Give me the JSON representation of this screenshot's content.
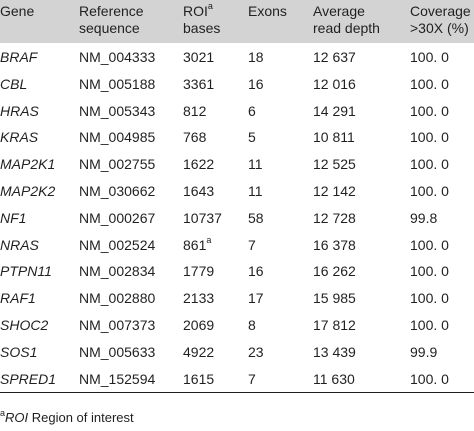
{
  "table": {
    "headers": {
      "gene": "Gene",
      "reference_line1": "Reference",
      "reference_line2": "sequence",
      "roi_line1_prefix": "ROI",
      "roi_line1_sup": "a",
      "roi_line2": "bases",
      "exons": "Exons",
      "depth_line1": "Average",
      "depth_line2": "read depth",
      "coverage_line1": "Coverage",
      "coverage_line2": ">30X (%)"
    },
    "rows": [
      {
        "gene": "BRAF",
        "ref": "NM_004333",
        "roi": "3021",
        "roi_sup": "",
        "exons": "18",
        "depth": "12 637",
        "coverage": "100. 0"
      },
      {
        "gene": "CBL",
        "ref": "NM_005188",
        "roi": "3361",
        "roi_sup": "",
        "exons": "16",
        "depth": "12 016",
        "coverage": "100. 0"
      },
      {
        "gene": "HRAS",
        "ref": "NM_005343",
        "roi": "812",
        "roi_sup": "",
        "exons": "6",
        "depth": "14 291",
        "coverage": "100. 0"
      },
      {
        "gene": "KRAS",
        "ref": "NM_004985",
        "roi": "768",
        "roi_sup": "",
        "exons": "5",
        "depth": "10 811",
        "coverage": "100. 0"
      },
      {
        "gene": "MAP2K1",
        "ref": "NM_002755",
        "roi": "1622",
        "roi_sup": "",
        "exons": "11",
        "depth": "12 525",
        "coverage": "100. 0"
      },
      {
        "gene": "MAP2K2",
        "ref": "NM_030662",
        "roi": "1643",
        "roi_sup": "",
        "exons": "11",
        "depth": "12 142",
        "coverage": "100. 0"
      },
      {
        "gene": "NF1",
        "ref": "NM_000267",
        "roi": "10737",
        "roi_sup": "",
        "exons": "58",
        "depth": "12 728",
        "coverage": "99.8"
      },
      {
        "gene": "NRAS",
        "ref": "NM_002524",
        "roi": "861",
        "roi_sup": "a",
        "exons": "7",
        "depth": "16 378",
        "coverage": "100. 0"
      },
      {
        "gene": "PTPN11",
        "ref": "NM_002834",
        "roi": "1779",
        "roi_sup": "",
        "exons": "16",
        "depth": "16 262",
        "coverage": "100. 0"
      },
      {
        "gene": "RAF1",
        "ref": "NM_002880",
        "roi": "2133",
        "roi_sup": "",
        "exons": "17",
        "depth": "15 985",
        "coverage": "100. 0"
      },
      {
        "gene": "SHOC2",
        "ref": "NM_007373",
        "roi": "2069",
        "roi_sup": "",
        "exons": "8",
        "depth": "17 812",
        "coverage": "100. 0"
      },
      {
        "gene": "SOS1",
        "ref": "NM_005633",
        "roi": "4922",
        "roi_sup": "",
        "exons": "23",
        "depth": "13 439",
        "coverage": "99.9"
      },
      {
        "gene": "SPRED1",
        "ref": "NM_152594",
        "roi": "1615",
        "roi_sup": "",
        "exons": "7",
        "depth": "11 630",
        "coverage": "100. 0"
      }
    ]
  },
  "footnote": {
    "sup": "a",
    "abbr": "ROI",
    "text": " Region of interest"
  },
  "colors": {
    "header_background": "#d3d3d3",
    "text": "#231f20",
    "rule": "#231f20"
  }
}
